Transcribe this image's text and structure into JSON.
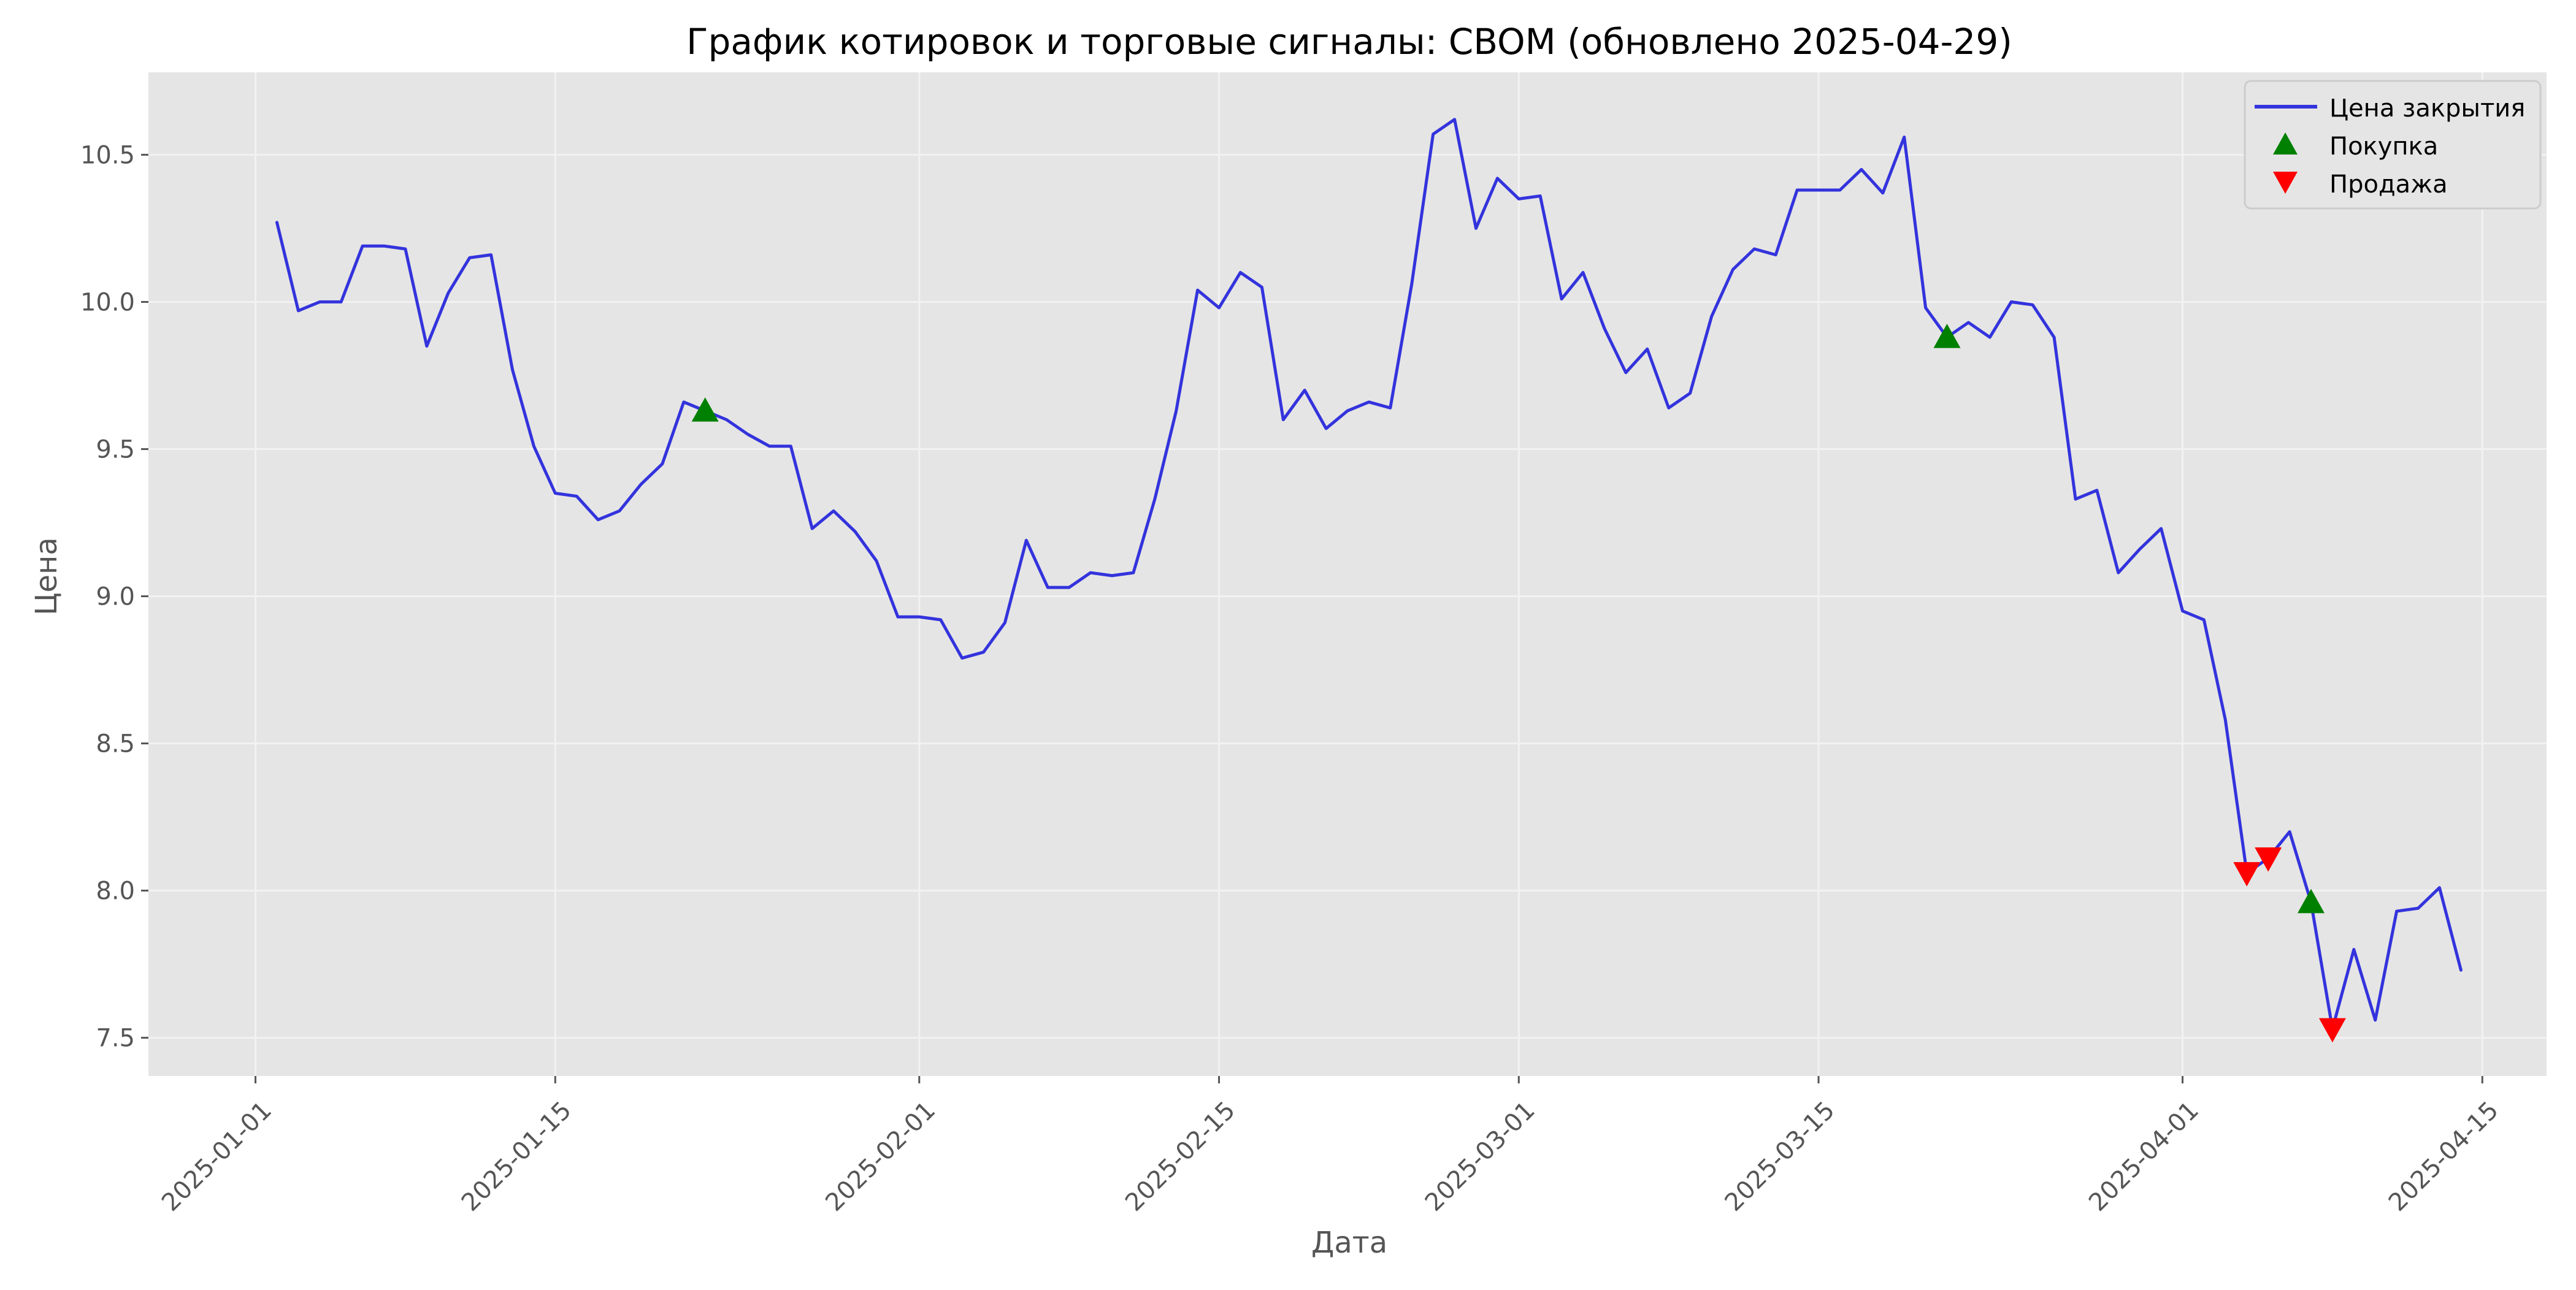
{
  "chart_data": {
    "type": "line",
    "title": "График котировок и торговые сигналы: CBOM (обновлено 2025-04-29)",
    "xlabel": "Дата",
    "ylabel": "Цена",
    "x_ticks": [
      "2025-01-01",
      "2025-01-15",
      "2025-02-01",
      "2025-02-15",
      "2025-03-01",
      "2025-03-15",
      "2025-04-01",
      "2025-04-15"
    ],
    "y_ticks": [
      "7.5",
      "8.0",
      "8.5",
      "9.0",
      "9.5",
      "10.0",
      "10.5"
    ],
    "xlim": [
      "2025-12-27",
      "2025-04-18"
    ],
    "ylim": [
      7.37,
      10.78
    ],
    "grid": true,
    "legend_position": "top-right",
    "colors": {
      "line": "#3333dd",
      "buy": "#008000",
      "sell": "#ff0000",
      "plot_bg": "#e5e5e5",
      "grid": "#f2f2f2",
      "text": "#555555"
    },
    "series": [
      {
        "name": "Цена закрытия",
        "points": [
          [
            "2025-01-02",
            10.27
          ],
          [
            "2025-01-03",
            9.97
          ],
          [
            "2025-01-04",
            10.0
          ],
          [
            "2025-01-05",
            10.0
          ],
          [
            "2025-01-06",
            10.19
          ],
          [
            "2025-01-07",
            10.19
          ],
          [
            "2025-01-08",
            10.18
          ],
          [
            "2025-01-09",
            9.85
          ],
          [
            "2025-01-10",
            10.03
          ],
          [
            "2025-01-11",
            10.15
          ],
          [
            "2025-01-12",
            10.16
          ],
          [
            "2025-01-13",
            9.77
          ],
          [
            "2025-01-14",
            9.51
          ],
          [
            "2025-01-15",
            9.35
          ],
          [
            "2025-01-16",
            9.34
          ],
          [
            "2025-01-17",
            9.26
          ],
          [
            "2025-01-18",
            9.29
          ],
          [
            "2025-01-19",
            9.38
          ],
          [
            "2025-01-20",
            9.45
          ],
          [
            "2025-01-21",
            9.66
          ],
          [
            "2025-01-22",
            9.63
          ],
          [
            "2025-01-23",
            9.6
          ],
          [
            "2025-01-24",
            9.55
          ],
          [
            "2025-01-25",
            9.51
          ],
          [
            "2025-01-26",
            9.51
          ],
          [
            "2025-01-27",
            9.23
          ],
          [
            "2025-01-28",
            9.29
          ],
          [
            "2025-01-29",
            9.22
          ],
          [
            "2025-01-30",
            9.12
          ],
          [
            "2025-01-31",
            8.93
          ],
          [
            "2025-02-01",
            8.93
          ],
          [
            "2025-02-02",
            8.92
          ],
          [
            "2025-02-03",
            8.79
          ],
          [
            "2025-02-04",
            8.81
          ],
          [
            "2025-02-05",
            8.91
          ],
          [
            "2025-02-06",
            9.19
          ],
          [
            "2025-02-07",
            9.03
          ],
          [
            "2025-02-08",
            9.03
          ],
          [
            "2025-02-09",
            9.08
          ],
          [
            "2025-02-10",
            9.07
          ],
          [
            "2025-02-11",
            9.08
          ],
          [
            "2025-02-12",
            9.33
          ],
          [
            "2025-02-13",
            9.63
          ],
          [
            "2025-02-14",
            10.04
          ],
          [
            "2025-02-15",
            9.98
          ],
          [
            "2025-02-16",
            10.1
          ],
          [
            "2025-02-17",
            10.05
          ],
          [
            "2025-02-18",
            9.6
          ],
          [
            "2025-02-19",
            9.7
          ],
          [
            "2025-02-20",
            9.57
          ],
          [
            "2025-02-21",
            9.63
          ],
          [
            "2025-02-22",
            9.66
          ],
          [
            "2025-02-23",
            9.64
          ],
          [
            "2025-02-24",
            10.06
          ],
          [
            "2025-02-25",
            10.57
          ],
          [
            "2025-02-26",
            10.62
          ],
          [
            "2025-02-27",
            10.25
          ],
          [
            "2025-02-28",
            10.42
          ],
          [
            "2025-03-01",
            10.35
          ],
          [
            "2025-03-02",
            10.36
          ],
          [
            "2025-03-03",
            10.01
          ],
          [
            "2025-03-04",
            10.1
          ],
          [
            "2025-03-05",
            9.91
          ],
          [
            "2025-03-06",
            9.76
          ],
          [
            "2025-03-07",
            9.84
          ],
          [
            "2025-03-08",
            9.64
          ],
          [
            "2025-03-09",
            9.69
          ],
          [
            "2025-03-10",
            9.95
          ],
          [
            "2025-03-11",
            10.11
          ],
          [
            "2025-03-12",
            10.18
          ],
          [
            "2025-03-13",
            10.16
          ],
          [
            "2025-03-14",
            10.38
          ],
          [
            "2025-03-15",
            10.38
          ],
          [
            "2025-03-16",
            10.38
          ],
          [
            "2025-03-17",
            10.45
          ],
          [
            "2025-03-18",
            10.37
          ],
          [
            "2025-03-19",
            10.56
          ],
          [
            "2025-03-20",
            9.98
          ],
          [
            "2025-03-21",
            9.88
          ],
          [
            "2025-03-22",
            9.93
          ],
          [
            "2025-03-23",
            9.88
          ],
          [
            "2025-03-24",
            10.0
          ],
          [
            "2025-03-25",
            9.99
          ],
          [
            "2025-03-26",
            9.88
          ],
          [
            "2025-03-27",
            9.33
          ],
          [
            "2025-03-28",
            9.36
          ],
          [
            "2025-03-29",
            9.08
          ],
          [
            "2025-03-30",
            9.16
          ],
          [
            "2025-03-31",
            9.23
          ],
          [
            "2025-04-01",
            8.95
          ],
          [
            "2025-04-02",
            8.92
          ],
          [
            "2025-04-03",
            8.58
          ],
          [
            "2025-04-04",
            8.06
          ],
          [
            "2025-04-05",
            8.11
          ],
          [
            "2025-04-06",
            8.2
          ],
          [
            "2025-04-07",
            7.96
          ],
          [
            "2025-04-08",
            7.53
          ],
          [
            "2025-04-09",
            7.8
          ],
          [
            "2025-04-10",
            7.56
          ],
          [
            "2025-04-11",
            7.93
          ],
          [
            "2025-04-12",
            7.94
          ],
          [
            "2025-04-13",
            8.01
          ],
          [
            "2025-04-14",
            7.73
          ]
        ]
      }
    ],
    "signals": {
      "buy": {
        "name": "Покупка",
        "points": [
          [
            "2025-01-22",
            9.63
          ],
          [
            "2025-03-21",
            9.88
          ],
          [
            "2025-04-07",
            7.96
          ]
        ]
      },
      "sell": {
        "name": "Продажа",
        "points": [
          [
            "2025-04-04",
            8.06
          ],
          [
            "2025-04-05",
            8.11
          ],
          [
            "2025-04-08",
            7.53
          ]
        ]
      }
    }
  }
}
